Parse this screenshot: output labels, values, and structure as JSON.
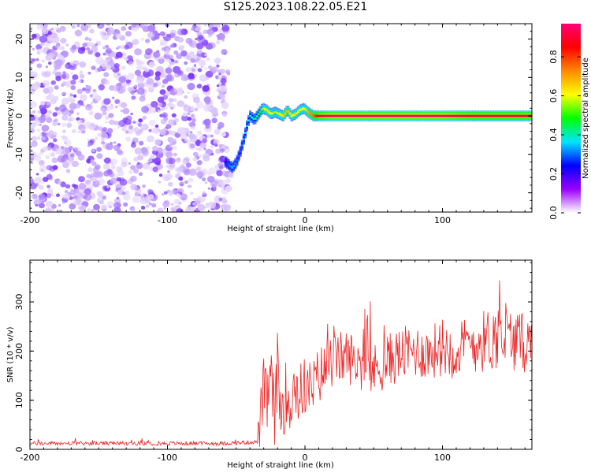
{
  "title": "S125.2023.108.22.05.E21",
  "chart_data": [
    {
      "type": "heatmap",
      "xlabel": "Height of straight line (km)",
      "ylabel": "Frequency (Hz)",
      "xlim": [
        -200,
        165
      ],
      "ylim": [
        -25,
        24
      ],
      "xticks": [
        -200,
        -100,
        0,
        100
      ],
      "yticks": [
        -20,
        -10,
        0,
        10,
        20
      ],
      "colorbar": {
        "label": "Normalized spectral amplitude",
        "range": [
          0,
          0.97
        ],
        "ticks": [
          0.0,
          0.2,
          0.4,
          0.6,
          0.8
        ],
        "tick_labels": [
          "0.0",
          "0.2",
          "0.4",
          "0.6",
          "0.8"
        ],
        "colors": [
          "#ffffff",
          "#9900ff",
          "#0000ff",
          "#00e5ff",
          "#00ff00",
          "#ffff00",
          "#ff8800",
          "#ff0000",
          "#ff0077"
        ]
      },
      "noise_region": {
        "x_range": [
          -200,
          -55
        ],
        "freq_range": [
          -25,
          24
        ],
        "amplitude": 0.1
      },
      "ridge": {
        "x": [
          -58,
          -53,
          -50,
          -47,
          -44,
          -42,
          -40,
          -37,
          -34,
          -31,
          -28,
          -25,
          -22,
          -19,
          -16,
          -13,
          -10,
          -7,
          -4,
          -1,
          2,
          6,
          10,
          20,
          40,
          60,
          80,
          100,
          120,
          140,
          165
        ],
        "frequency": [
          -12,
          -13.5,
          -12,
          -9,
          -5,
          -2,
          0,
          -1,
          0.5,
          2,
          1.5,
          0.5,
          1,
          0.5,
          0,
          1.5,
          0,
          0.5,
          1.5,
          2,
          1,
          0,
          0,
          0,
          0,
          0,
          0,
          0,
          0,
          0,
          0
        ],
        "amplitude": [
          0.25,
          0.35,
          0.3,
          0.3,
          0.35,
          0.35,
          0.4,
          0.4,
          0.45,
          0.55,
          0.65,
          0.6,
          0.55,
          0.6,
          0.65,
          0.7,
          0.6,
          0.65,
          0.6,
          0.6,
          0.7,
          0.75,
          0.9,
          0.95,
          0.95,
          0.95,
          0.95,
          0.95,
          0.9,
          0.9,
          0.9
        ]
      }
    },
    {
      "type": "line",
      "xlabel": "Height of straight line (km)",
      "ylabel": "SNR (10 * v/v)",
      "xlim": [
        -200,
        165
      ],
      "ylim": [
        0,
        385
      ],
      "xticks": [
        -200,
        -100,
        0,
        100
      ],
      "yticks": [
        0,
        100,
        200,
        300
      ],
      "series": [
        {
          "color": "#ee2222",
          "x": [
            -200,
            -60,
            -35,
            -33,
            -30,
            -28,
            -25,
            -22,
            -20,
            -18,
            -15,
            -12,
            -10,
            -8,
            -5,
            0,
            5,
            10,
            20,
            30,
            40,
            50,
            60,
            70,
            80,
            90,
            100,
            110,
            120,
            130,
            140,
            150,
            160,
            165
          ],
          "y": [
            12,
            12,
            15,
            50,
            120,
            90,
            150,
            60,
            170,
            80,
            100,
            130,
            60,
            150,
            110,
            130,
            120,
            150,
            180,
            190,
            175,
            160,
            180,
            195,
            200,
            195,
            210,
            200,
            215,
            220,
            230,
            225,
            215,
            220
          ],
          "spread": [
            4,
            4,
            4,
            50,
            70,
            70,
            70,
            70,
            70,
            70,
            70,
            70,
            70,
            70,
            65,
            60,
            60,
            60,
            55,
            55,
            55,
            55,
            55,
            55,
            55,
            55,
            60,
            60,
            60,
            65,
            70,
            65,
            60,
            60
          ]
        }
      ]
    }
  ]
}
